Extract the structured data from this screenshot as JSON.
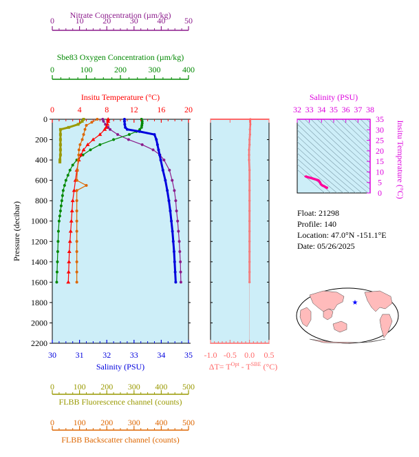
{
  "float_info": {
    "float_line": "Float:  21298",
    "profile_line": "Profile:  140",
    "location_line": "Location:  47.0°N  -151.1°E",
    "date_line": "Date:  05/26/2025"
  },
  "colors": {
    "panel_bg": "#cdeef8",
    "nitrate": "#8b1a8b",
    "oxygen": "#008800",
    "temperature": "#ff0000",
    "salinity": "#0000dd",
    "fluorescence": "#999900",
    "backscatter": "#dd6600",
    "delta_t": "#ff6666",
    "ts_axis": "#dd00dd",
    "ts_profile": "#ff0099",
    "land": "#ffbbbb",
    "ocean": "#ffffff"
  },
  "chart_data": [
    {
      "type": "line",
      "title": "",
      "ylabel": "Pressure (decibar)",
      "ylim": [
        2200,
        0
      ],
      "yticks": [
        "0",
        "200",
        "400",
        "600",
        "800",
        "1000",
        "1200",
        "1400",
        "1600",
        "1800",
        "2000",
        "2200"
      ],
      "grid": false,
      "axes": [
        {
          "id": "nitrate",
          "label": "Nitrate Concentration (µm/kg)",
          "position": "top",
          "ticks": [
            "0",
            "10",
            "20",
            "30",
            "40",
            "50"
          ],
          "range": [
            0,
            50
          ],
          "color": "#8b1a8b"
        },
        {
          "id": "oxygen",
          "label": "Sbe83 Oxygen Concentration (µm/kg)",
          "position": "top",
          "ticks": [
            "0",
            "100",
            "200",
            "300",
            "400"
          ],
          "range": [
            0,
            400
          ],
          "color": "#008800"
        },
        {
          "id": "temperature",
          "label": "Insitu Temperature (°C)",
          "position": "top",
          "ticks": [
            "0",
            "4",
            "8",
            "12",
            "16",
            "20"
          ],
          "range": [
            0,
            20
          ],
          "color": "#ff0000"
        },
        {
          "id": "salinity",
          "label": "Salinity (PSU)",
          "position": "bottom",
          "ticks": [
            "30",
            "31",
            "32",
            "33",
            "34",
            "35"
          ],
          "range": [
            30,
            35
          ],
          "color": "#0000dd"
        },
        {
          "id": "fluorescence",
          "label": "FLBB Fluorescence channel (counts)",
          "position": "bottom",
          "ticks": [
            "0",
            "100",
            "200",
            "300",
            "400",
            "500"
          ],
          "range": [
            0,
            500
          ],
          "color": "#999900"
        },
        {
          "id": "backscatter",
          "label": "FLBB Backscatter channel (counts)",
          "position": "bottom",
          "ticks": [
            "0",
            "100",
            "200",
            "300",
            "400",
            "500"
          ],
          "range": [
            0,
            500
          ],
          "color": "#dd6600"
        }
      ],
      "series": [
        {
          "axis": "nitrate",
          "pressure": [
            0,
            20,
            50,
            80,
            100,
            150,
            200,
            250,
            300,
            350,
            400,
            500,
            600,
            700,
            800,
            900,
            1000,
            1100,
            1200,
            1300,
            1400,
            1500,
            1600
          ],
          "values": [
            18.5,
            18.8,
            19.5,
            20.5,
            21.2,
            24,
            28,
            33,
            37,
            39.5,
            41,
            43,
            44,
            44.8,
            45.3,
            45.6,
            46,
            46.3,
            46.6,
            46.8,
            47,
            47.1,
            47.2
          ]
        },
        {
          "axis": "oxygen",
          "pressure": [
            0,
            20,
            40,
            60,
            80,
            100,
            120,
            150,
            200,
            250,
            300,
            350,
            400,
            450,
            500,
            550,
            600,
            650,
            700,
            750,
            800,
            850,
            900,
            950,
            1000,
            1100,
            1200,
            1300,
            1400,
            1500,
            1600
          ],
          "values": [
            262,
            264,
            264,
            263,
            262,
            257,
            247,
            226,
            180,
            140,
            112,
            90,
            72,
            60,
            52,
            46,
            40,
            36,
            32,
            30,
            28,
            26,
            24,
            22,
            20,
            18,
            17,
            16,
            15,
            14,
            13
          ]
        },
        {
          "axis": "temperature",
          "pressure": [
            0,
            20,
            50,
            80,
            100,
            150,
            200,
            250,
            300,
            350,
            400,
            500,
            600,
            700,
            800,
            900,
            1000,
            1100,
            1200,
            1300,
            1400,
            1500,
            1600
          ],
          "values": [
            8.2,
            8.2,
            8.1,
            7.9,
            7.7,
            7,
            6,
            5.2,
            4.6,
            4.2,
            3.9,
            3.6,
            3.4,
            3.2,
            3,
            2.9,
            2.8,
            2.7,
            2.6,
            2.5,
            2.45,
            2.4,
            2.35
          ]
        },
        {
          "axis": "salinity",
          "pressure": [
            0,
            20,
            50,
            80,
            100,
            120,
            150,
            200,
            250,
            300,
            350,
            400,
            500,
            600,
            700,
            800,
            900,
            1000,
            1100,
            1200,
            1300,
            1400,
            1500,
            1600
          ],
          "values": [
            32.65,
            32.65,
            32.66,
            32.68,
            32.75,
            33.2,
            33.75,
            33.82,
            33.86,
            33.9,
            33.94,
            33.98,
            34.06,
            34.15,
            34.22,
            34.28,
            34.33,
            34.37,
            34.41,
            34.44,
            34.47,
            34.49,
            34.51,
            34.53
          ]
        },
        {
          "axis": "fluorescence",
          "pressure": [
            0,
            20,
            50,
            80,
            100,
            150,
            200,
            250,
            300,
            350,
            400,
            420
          ],
          "values": [
            115,
            110,
            95,
            60,
            30,
            30,
            30,
            30,
            30,
            30,
            28,
            28
          ]
        },
        {
          "axis": "backscatter",
          "pressure": [
            0,
            30,
            60,
            100,
            150,
            200,
            250,
            300,
            350,
            400,
            500,
            600,
            650,
            700,
            800,
            900,
            1000,
            1100,
            1200,
            1300,
            1400,
            1500,
            1600
          ],
          "values": [
            165,
            145,
            125,
            120,
            115,
            110,
            102,
            98,
            97,
            95,
            92,
            90,
            125,
            90,
            90,
            90,
            90,
            90,
            90,
            90,
            90,
            90,
            90
          ]
        }
      ]
    },
    {
      "type": "line",
      "title": "",
      "xlabel": "ΔT= T",
      "xlabel_sup1": "Opt",
      "xlabel_mid": " - T",
      "xlabel_sup2": "SBE",
      "xlabel_unit": " (°C)",
      "xlim": [
        -1.0,
        0.5
      ],
      "xticks": [
        "-1.0",
        "-0.5",
        "0.0",
        "0.5"
      ],
      "ylim": [
        2200,
        0
      ],
      "series": [
        {
          "name": "",
          "pressure": [
            0,
            50,
            100,
            150,
            200,
            250,
            300,
            350,
            400,
            500,
            600,
            700,
            800,
            900,
            1000,
            1100,
            1200,
            1300,
            1400,
            1500,
            1600
          ],
          "values": [
            0.02,
            0.02,
            0.01,
            0.01,
            0.0,
            0.0,
            -0.01,
            -0.01,
            -0.01,
            0.0,
            0.0,
            0.0,
            0.0,
            0.0,
            0.0,
            0.0,
            0.0,
            0.0,
            0.0,
            0.0,
            0.0
          ]
        }
      ]
    },
    {
      "type": "line",
      "title": "Salinity (PSU)",
      "xlabel": "Salinity (PSU)",
      "ylabel": "Insitu Temperature (°C)",
      "xlim": [
        32,
        38
      ],
      "xticks": [
        "32",
        "33",
        "34",
        "35",
        "36",
        "37",
        "38"
      ],
      "ylim": [
        0,
        35
      ],
      "yticks": [
        "0",
        "5",
        "10",
        "15",
        "20",
        "25",
        "30",
        "35"
      ],
      "series": [
        {
          "name": "",
          "salinity": [
            32.65,
            32.66,
            32.75,
            33.2,
            33.75,
            33.86,
            33.94,
            34.06,
            34.22,
            34.33,
            34.44,
            34.53
          ],
          "temperature": [
            8.2,
            8.1,
            7.7,
            7.0,
            6.0,
            5.2,
            4.2,
            3.6,
            3.2,
            2.8,
            2.5,
            2.35
          ]
        }
      ]
    }
  ]
}
